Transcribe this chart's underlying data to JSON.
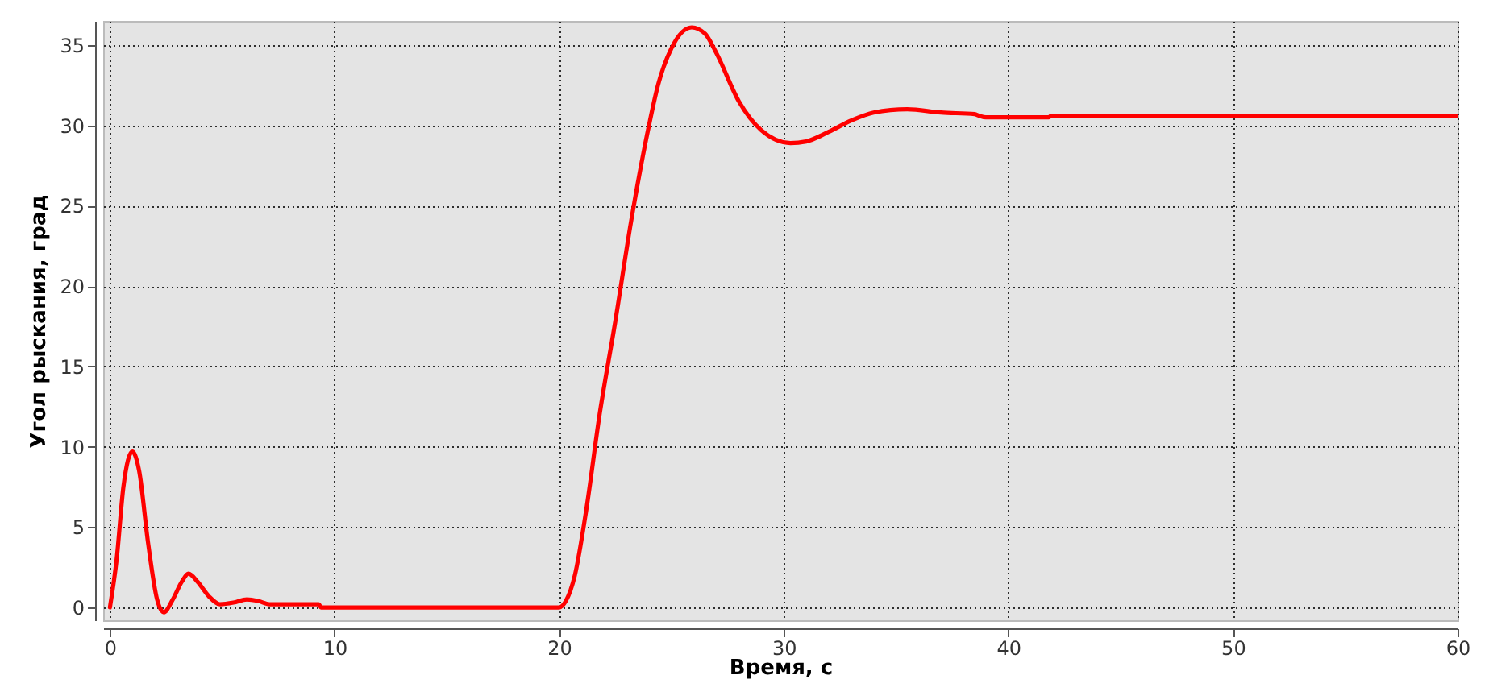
{
  "chart_data": {
    "type": "line",
    "xlabel": "Время, с",
    "ylabel": "Угол рыскания, град",
    "xlim": [
      -0.3,
      60
    ],
    "ylim": [
      -0.8,
      36.5
    ],
    "xticks": [
      0,
      10,
      20,
      30,
      40,
      50,
      60
    ],
    "yticks": [
      0,
      5,
      10,
      15,
      20,
      25,
      30,
      35
    ],
    "grid": true,
    "marker": "none",
    "line_style": "solid",
    "series": [
      {
        "color": "#ff0000",
        "x": [
          0,
          0.3,
          0.6,
          1.0,
          1.3,
          1.7,
          2.1,
          2.4,
          2.8,
          3.2,
          3.5,
          3.9,
          4.4,
          4.9,
          5.5,
          6.1,
          6.6,
          7.1,
          8,
          9.3,
          9.4,
          20,
          20.3,
          20.7,
          21.2,
          21.8,
          22.5,
          23.2,
          24,
          24.4,
          25,
          25.9,
          26.5,
          27,
          28,
          29,
          30.3,
          31,
          32,
          33,
          34,
          35.5,
          37,
          38.5,
          38.7,
          39,
          41.8,
          41.9,
          60
        ],
        "values": [
          0,
          3,
          7.5,
          9.7,
          8.5,
          4,
          0.5,
          -0.3,
          0.5,
          1.6,
          2.1,
          1.6,
          0.7,
          0.2,
          0.3,
          0.5,
          0.4,
          0.2,
          0.2,
          0.2,
          0,
          0,
          0.4,
          2,
          6,
          12,
          17.8,
          24,
          30,
          32.5,
          34.8,
          36.1,
          35.7,
          34.5,
          31.5,
          29.7,
          28.9,
          29,
          29.6,
          30.3,
          30.8,
          31,
          30.8,
          30.7,
          30.6,
          30.5,
          30.5,
          30.6,
          30.6
        ]
      }
    ]
  }
}
